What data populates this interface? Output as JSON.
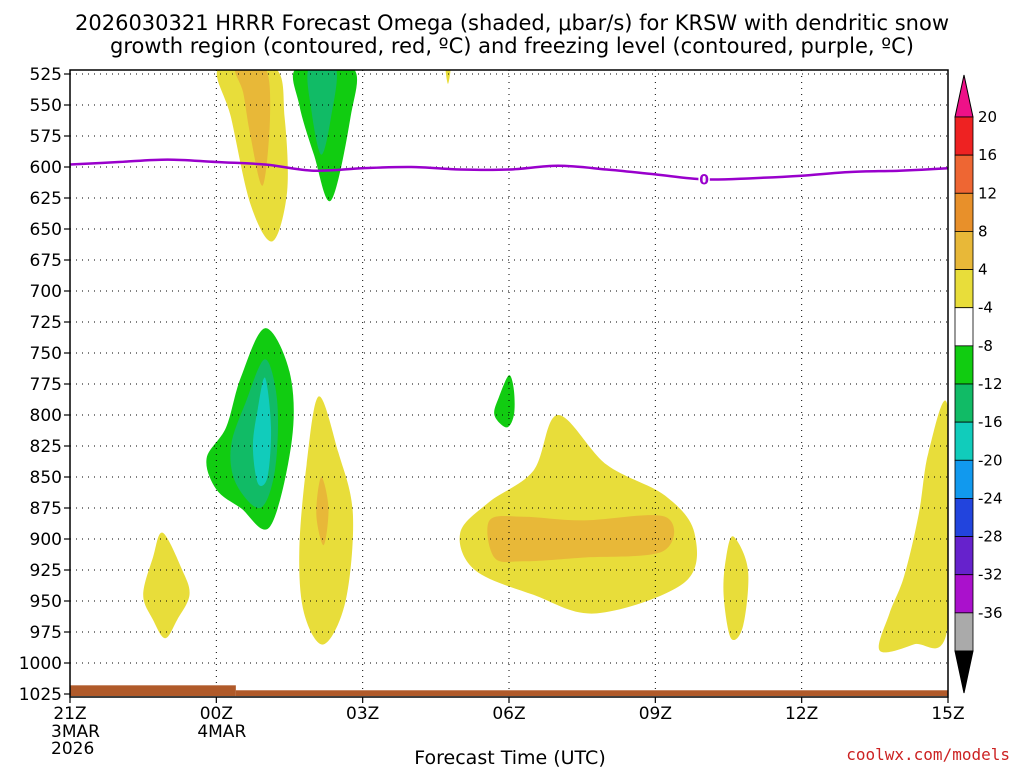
{
  "chart_data": {
    "type": "contour",
    "title_line1": "2026030321 HRRR Forecast Omega (shaded, μbar/s) for KRSW with dendritic snow",
    "title_line2": "growth region (contoured, red, ºC) and freezing level (contoured, purple, ºC)",
    "xlabel": "Forecast Time (UTC)",
    "credit": "coolwx.com/models",
    "credit_color": "#cc2222",
    "x_ticks": [
      {
        "t": 0,
        "label": "21Z",
        "sub1": "3MAR",
        "sub2": "2026"
      },
      {
        "t": 3,
        "label": "00Z",
        "sub1": "4MAR",
        "sub2": ""
      },
      {
        "t": 6,
        "label": "03Z",
        "sub1": "",
        "sub2": ""
      },
      {
        "t": 9,
        "label": "06Z",
        "sub1": "",
        "sub2": ""
      },
      {
        "t": 12,
        "label": "09Z",
        "sub1": "",
        "sub2": ""
      },
      {
        "t": 15,
        "label": "12Z",
        "sub1": "",
        "sub2": ""
      },
      {
        "t": 18,
        "label": "15Z",
        "sub1": "",
        "sub2": ""
      }
    ],
    "x_range": [
      0,
      18
    ],
    "y_ticks": [
      525,
      550,
      575,
      600,
      625,
      650,
      675,
      700,
      725,
      750,
      775,
      800,
      825,
      850,
      875,
      900,
      925,
      950,
      975,
      1000,
      1025
    ],
    "y_range": [
      520,
      1030
    ],
    "colorbar": {
      "labels": [
        "20",
        "16",
        "12",
        "8",
        "4",
        "-4",
        "-8",
        "-12",
        "-16",
        "-20",
        "-24",
        "-28",
        "-32",
        "-36"
      ],
      "colors": [
        "#ee2222",
        "#ee6633",
        "#e8902a",
        "#e8b838",
        "#e8dd3a",
        "#ffffff",
        "#11cc11",
        "#11bb66",
        "#11ccbb",
        "#1199ee",
        "#2244dd",
        "#6622cc",
        "#aa11cc",
        "#aaaaaa"
      ],
      "top_arrow_color": "#ee1188",
      "bottom_arrow_color": "#000000"
    },
    "freezing_level": {
      "color": "#9900cc",
      "label": "0",
      "label_t": 13.0,
      "points": [
        [
          0,
          598
        ],
        [
          1,
          596
        ],
        [
          2,
          594
        ],
        [
          3,
          596
        ],
        [
          4,
          598
        ],
        [
          5,
          603
        ],
        [
          6,
          601
        ],
        [
          7,
          600
        ],
        [
          8,
          602
        ],
        [
          9,
          602
        ],
        [
          10,
          599
        ],
        [
          11,
          602
        ],
        [
          12,
          606
        ],
        [
          13,
          610
        ],
        [
          14,
          609
        ],
        [
          15,
          607
        ],
        [
          16,
          604
        ],
        [
          17,
          603
        ],
        [
          18,
          601
        ]
      ]
    },
    "terrain": {
      "color": "#b05a2a",
      "segments": [
        [
          0,
          3.4,
          1018
        ],
        [
          3.4,
          18,
          1022
        ]
      ]
    },
    "omega_regions": [
      {
        "sign": "positive",
        "level": 4,
        "color": "#e8dd3a",
        "points": [
          [
            3.05,
            520
          ],
          [
            4.2,
            520
          ],
          [
            4.4,
            560
          ],
          [
            4.45,
            620
          ],
          [
            4.15,
            660
          ],
          [
            3.7,
            630
          ],
          [
            3.3,
            560
          ]
        ]
      },
      {
        "sign": "positive",
        "level": 8,
        "color": "#e8b838",
        "points": [
          [
            3.4,
            520
          ],
          [
            4.0,
            520
          ],
          [
            4.1,
            560
          ],
          [
            3.95,
            615
          ],
          [
            3.7,
            575
          ],
          [
            3.55,
            540
          ]
        ]
      },
      {
        "sign": "positive",
        "level": 4,
        "color": "#e8dd3a",
        "points": [
          [
            7.7,
            520
          ],
          [
            7.8,
            520
          ],
          [
            7.75,
            533
          ]
        ]
      },
      {
        "sign": "negative",
        "level": -4,
        "color": "#11cc11",
        "points": [
          [
            4.65,
            520
          ],
          [
            5.8,
            520
          ],
          [
            5.75,
            560
          ],
          [
            5.35,
            627
          ],
          [
            5.0,
            590
          ],
          [
            4.7,
            550
          ]
        ]
      },
      {
        "sign": "negative",
        "level": -8,
        "color": "#11bb66",
        "points": [
          [
            4.9,
            520
          ],
          [
            5.45,
            520
          ],
          [
            5.35,
            560
          ],
          [
            5.15,
            590
          ],
          [
            4.95,
            555
          ]
        ]
      },
      {
        "sign": "negative",
        "level": -4,
        "color": "#11cc11",
        "points": [
          [
            4.0,
            730
          ],
          [
            4.5,
            765
          ],
          [
            4.55,
            820
          ],
          [
            4.1,
            890
          ],
          [
            3.5,
            875
          ],
          [
            3.0,
            860
          ],
          [
            2.8,
            835
          ],
          [
            3.2,
            810
          ],
          [
            3.5,
            770
          ]
        ]
      },
      {
        "sign": "negative",
        "level": -8,
        "color": "#11bb66",
        "points": [
          [
            4.0,
            755
          ],
          [
            4.25,
            790
          ],
          [
            4.2,
            845
          ],
          [
            3.9,
            875
          ],
          [
            3.4,
            855
          ],
          [
            3.3,
            825
          ],
          [
            3.6,
            790
          ]
        ]
      },
      {
        "sign": "negative",
        "level": -12,
        "color": "#11ccbb",
        "points": [
          [
            4.0,
            770
          ],
          [
            4.12,
            810
          ],
          [
            4.05,
            850
          ],
          [
            3.85,
            855
          ],
          [
            3.75,
            825
          ],
          [
            3.85,
            795
          ]
        ]
      },
      {
        "sign": "negative",
        "level": -4,
        "color": "#11cc11",
        "points": [
          [
            9.0,
            768
          ],
          [
            9.1,
            780
          ],
          [
            9.1,
            800
          ],
          [
            8.95,
            810
          ],
          [
            8.7,
            800
          ],
          [
            8.8,
            785
          ]
        ]
      },
      {
        "sign": "positive",
        "level": 4,
        "color": "#e8dd3a",
        "points": [
          [
            1.9,
            895
          ],
          [
            2.3,
            925
          ],
          [
            2.45,
            945
          ],
          [
            2.2,
            965
          ],
          [
            1.95,
            980
          ],
          [
            1.7,
            965
          ],
          [
            1.5,
            945
          ],
          [
            1.7,
            915
          ]
        ]
      },
      {
        "sign": "positive",
        "level": 4,
        "color": "#e8dd3a",
        "points": [
          [
            5.1,
            785
          ],
          [
            5.5,
            830
          ],
          [
            5.8,
            880
          ],
          [
            5.65,
            950
          ],
          [
            5.2,
            985
          ],
          [
            4.8,
            960
          ],
          [
            4.7,
            910
          ],
          [
            4.85,
            840
          ]
        ]
      },
      {
        "sign": "positive",
        "level": 8,
        "color": "#e8b838",
        "points": [
          [
            5.15,
            850
          ],
          [
            5.3,
            875
          ],
          [
            5.2,
            905
          ],
          [
            5.05,
            880
          ]
        ]
      },
      {
        "sign": "positive",
        "level": 4,
        "color": "#e8dd3a",
        "points": [
          [
            10.0,
            800
          ],
          [
            11.0,
            840
          ],
          [
            12.2,
            865
          ],
          [
            12.8,
            895
          ],
          [
            12.6,
            935
          ],
          [
            10.8,
            960
          ],
          [
            9.5,
            945
          ],
          [
            8.3,
            925
          ],
          [
            8.0,
            895
          ],
          [
            8.6,
            870
          ],
          [
            9.5,
            845
          ]
        ]
      },
      {
        "sign": "positive",
        "level": 8,
        "color": "#e8b838",
        "points": [
          [
            8.6,
            885
          ],
          [
            9.3,
            882
          ],
          [
            10.5,
            885
          ],
          [
            12.2,
            882
          ],
          [
            12.15,
            910
          ],
          [
            10.5,
            915
          ],
          [
            9.3,
            918
          ],
          [
            8.7,
            915
          ]
        ]
      },
      {
        "sign": "positive",
        "level": 4,
        "color": "#e8dd3a",
        "points": [
          [
            13.6,
            898
          ],
          [
            13.9,
            925
          ],
          [
            13.8,
            970
          ],
          [
            13.55,
            980
          ],
          [
            13.4,
            945
          ],
          [
            13.45,
            915
          ]
        ]
      },
      {
        "sign": "positive",
        "level": 4,
        "color": "#e8dd3a",
        "points": [
          [
            18.0,
            795
          ],
          [
            18.0,
            970
          ],
          [
            17.3,
            985
          ],
          [
            16.6,
            990
          ],
          [
            16.8,
            960
          ],
          [
            17.1,
            930
          ],
          [
            17.4,
            880
          ],
          [
            17.6,
            830
          ]
        ]
      }
    ]
  }
}
